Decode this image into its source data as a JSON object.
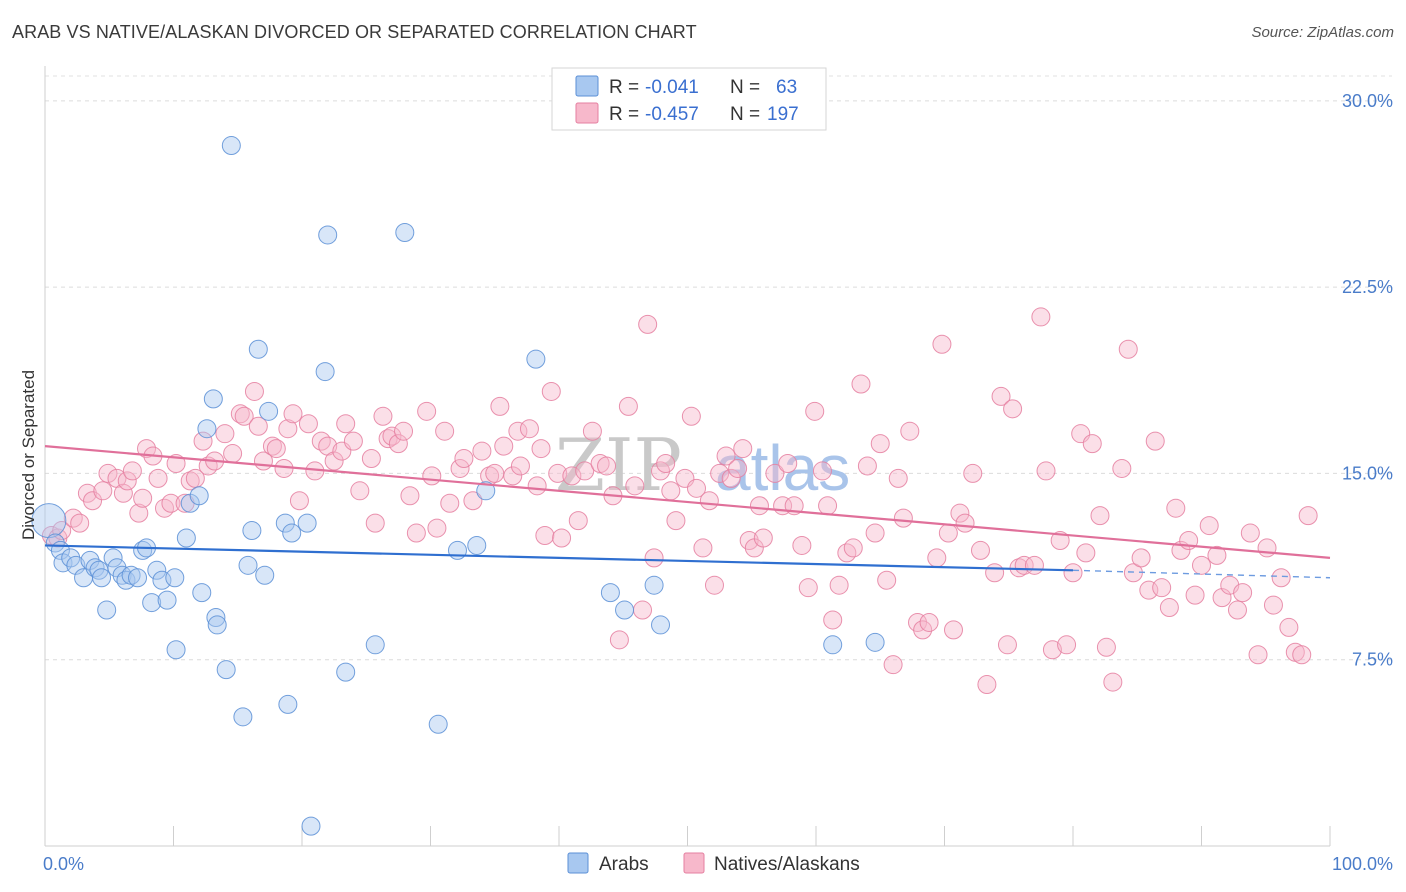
{
  "title": "ARAB VS NATIVE/ALASKAN DIVORCED OR SEPARATED CORRELATION CHART",
  "source": "Source: ZipAtlas.com",
  "watermark": {
    "part1": "ZIP",
    "part2": "atlas"
  },
  "legend": {
    "rows": [
      {
        "r_label": "R =",
        "r_value": "-0.041",
        "n_label": "N =",
        "n_value": "63",
        "color": "#a8c8f0",
        "stroke": "#5b8fd6"
      },
      {
        "r_label": "R =",
        "r_value": "-0.457",
        "n_label": "N =",
        "n_value": "197",
        "color": "#f7b8cb",
        "stroke": "#e57fa0"
      }
    ]
  },
  "bottom_legend": [
    {
      "label": "Arabs",
      "color": "#a8c8f0",
      "stroke": "#5b8fd6"
    },
    {
      "label": "Natives/Alaskans",
      "color": "#f7b8cb",
      "stroke": "#e57fa0"
    }
  ],
  "chart_data": {
    "type": "scatter",
    "title": "ARAB VS NATIVE/ALASKAN DIVORCED OR SEPARATED CORRELATION CHART",
    "xlabel": "",
    "ylabel": "Divorced or Separated",
    "xlim": [
      0,
      100
    ],
    "ylim": [
      0,
      31
    ],
    "x_tick_labels": [
      "0.0%",
      "100.0%"
    ],
    "y_ticks": [
      {
        "value": 7.5,
        "label": "7.5%"
      },
      {
        "value": 15.0,
        "label": "15.0%"
      },
      {
        "value": 22.5,
        "label": "22.5%"
      },
      {
        "value": 30.0,
        "label": "30.0%"
      }
    ],
    "grid": true,
    "legend_position": "top-center",
    "series": [
      {
        "name": "Arabs",
        "color": "#5b8fd6",
        "fill": "#a8c8f0",
        "trend": {
          "x": [
            0,
            80
          ],
          "y": [
            12.1,
            11.1
          ],
          "dashed_to": [
            100,
            10.8
          ]
        },
        "points": [
          [
            0.3,
            13.1
          ],
          [
            0.8,
            12.2
          ],
          [
            1.2,
            11.9
          ],
          [
            1.4,
            11.4
          ],
          [
            2,
            11.6
          ],
          [
            2.4,
            11.3
          ],
          [
            3,
            10.8
          ],
          [
            3.5,
            11.5
          ],
          [
            3.9,
            11.2
          ],
          [
            4.2,
            11.1
          ],
          [
            4.4,
            10.8
          ],
          [
            4.8,
            9.5
          ],
          [
            5.3,
            11.6
          ],
          [
            5.6,
            11.2
          ],
          [
            6,
            10.9
          ],
          [
            6.3,
            10.7
          ],
          [
            6.7,
            10.9
          ],
          [
            7.2,
            10.8
          ],
          [
            7.6,
            11.9
          ],
          [
            7.9,
            12.0
          ],
          [
            8.3,
            9.8
          ],
          [
            8.7,
            11.1
          ],
          [
            9.1,
            10.7
          ],
          [
            9.5,
            9.9
          ],
          [
            10.1,
            10.8
          ],
          [
            10.2,
            7.9
          ],
          [
            11.0,
            12.4
          ],
          [
            11.3,
            13.8
          ],
          [
            12.0,
            14.1
          ],
          [
            12.2,
            10.2
          ],
          [
            12.6,
            16.8
          ],
          [
            13.1,
            18.0
          ],
          [
            13.3,
            9.2
          ],
          [
            13.4,
            8.9
          ],
          [
            14.1,
            7.1
          ],
          [
            14.5,
            28.2
          ],
          [
            15.4,
            5.2
          ],
          [
            15.8,
            11.3
          ],
          [
            16.1,
            12.7
          ],
          [
            16.6,
            20.0
          ],
          [
            17.1,
            10.9
          ],
          [
            17.4,
            17.5
          ],
          [
            18.7,
            13.0
          ],
          [
            18.9,
            5.7
          ],
          [
            19.2,
            12.6
          ],
          [
            20.4,
            13.0
          ],
          [
            20.7,
            0.8
          ],
          [
            21.8,
            19.1
          ],
          [
            22.0,
            24.6
          ],
          [
            23.4,
            7.0
          ],
          [
            25.7,
            8.1
          ],
          [
            28.0,
            24.7
          ],
          [
            30.6,
            4.9
          ],
          [
            32.1,
            11.9
          ],
          [
            33.6,
            12.1
          ],
          [
            34.3,
            14.3
          ],
          [
            38.2,
            19.6
          ],
          [
            44.0,
            10.2
          ],
          [
            45.1,
            9.5
          ],
          [
            47.4,
            10.5
          ],
          [
            47.9,
            8.9
          ],
          [
            61.3,
            8.1
          ],
          [
            64.6,
            8.2
          ]
        ]
      },
      {
        "name": "Natives/Alaskans",
        "color": "#e57fa0",
        "fill": "#f7b8cb",
        "trend": {
          "x": [
            0,
            100
          ],
          "y": [
            16.1,
            11.6
          ]
        },
        "points": [
          [
            0.5,
            12.5
          ],
          [
            1.0,
            12.4
          ],
          [
            1.3,
            12.7
          ],
          [
            2.2,
            13.2
          ],
          [
            2.7,
            13.0
          ],
          [
            3.3,
            14.2
          ],
          [
            3.7,
            13.9
          ],
          [
            4.5,
            14.3
          ],
          [
            4.9,
            15.0
          ],
          [
            5.6,
            14.8
          ],
          [
            6.1,
            14.2
          ],
          [
            6.4,
            14.7
          ],
          [
            6.8,
            15.1
          ],
          [
            7.3,
            13.4
          ],
          [
            7.6,
            14.0
          ],
          [
            7.9,
            16.0
          ],
          [
            8.4,
            15.7
          ],
          [
            8.8,
            14.8
          ],
          [
            9.3,
            13.6
          ],
          [
            9.8,
            13.8
          ],
          [
            10.2,
            15.4
          ],
          [
            10.9,
            13.8
          ],
          [
            11.3,
            14.7
          ],
          [
            11.7,
            14.8
          ],
          [
            12.3,
            16.3
          ],
          [
            12.7,
            15.3
          ],
          [
            13.2,
            15.5
          ],
          [
            14.0,
            16.6
          ],
          [
            14.6,
            15.8
          ],
          [
            15.2,
            17.4
          ],
          [
            15.5,
            17.3
          ],
          [
            16.3,
            18.3
          ],
          [
            16.6,
            16.9
          ],
          [
            17.0,
            15.5
          ],
          [
            17.7,
            16.1
          ],
          [
            18.0,
            16.0
          ],
          [
            18.6,
            15.2
          ],
          [
            18.9,
            16.8
          ],
          [
            19.3,
            17.4
          ],
          [
            19.8,
            13.9
          ],
          [
            20.5,
            17.0
          ],
          [
            21.0,
            15.1
          ],
          [
            21.5,
            16.3
          ],
          [
            22.0,
            16.1
          ],
          [
            22.5,
            15.5
          ],
          [
            23.1,
            15.9
          ],
          [
            23.4,
            17.0
          ],
          [
            24.0,
            16.3
          ],
          [
            24.5,
            14.3
          ],
          [
            25.4,
            15.6
          ],
          [
            25.7,
            13.0
          ],
          [
            26.3,
            17.3
          ],
          [
            26.7,
            16.4
          ],
          [
            27.0,
            16.5
          ],
          [
            27.5,
            16.2
          ],
          [
            27.9,
            16.7
          ],
          [
            28.4,
            14.1
          ],
          [
            28.9,
            12.6
          ],
          [
            29.7,
            17.5
          ],
          [
            30.1,
            14.9
          ],
          [
            30.5,
            12.8
          ],
          [
            31.1,
            16.7
          ],
          [
            31.5,
            13.8
          ],
          [
            32.3,
            15.2
          ],
          [
            32.6,
            15.6
          ],
          [
            33.3,
            13.9
          ],
          [
            34.0,
            15.9
          ],
          [
            34.6,
            14.9
          ],
          [
            35.0,
            15.0
          ],
          [
            35.4,
            17.7
          ],
          [
            35.7,
            16.1
          ],
          [
            36.4,
            14.9
          ],
          [
            36.8,
            16.7
          ],
          [
            37.0,
            15.3
          ],
          [
            37.7,
            16.8
          ],
          [
            38.3,
            14.5
          ],
          [
            38.6,
            16.0
          ],
          [
            38.9,
            12.5
          ],
          [
            39.4,
            18.3
          ],
          [
            39.9,
            15.0
          ],
          [
            40.2,
            12.4
          ],
          [
            41.0,
            14.9
          ],
          [
            41.5,
            13.1
          ],
          [
            42.0,
            15.1
          ],
          [
            42.6,
            16.7
          ],
          [
            43.2,
            15.4
          ],
          [
            43.7,
            15.3
          ],
          [
            44.2,
            14.1
          ],
          [
            44.7,
            8.3
          ],
          [
            45.4,
            17.7
          ],
          [
            45.9,
            14.5
          ],
          [
            46.5,
            9.5
          ],
          [
            46.9,
            21.0
          ],
          [
            47.4,
            11.6
          ],
          [
            47.9,
            15.1
          ],
          [
            48.3,
            15.4
          ],
          [
            48.7,
            14.3
          ],
          [
            49.1,
            13.1
          ],
          [
            49.8,
            14.8
          ],
          [
            50.3,
            17.3
          ],
          [
            50.7,
            14.4
          ],
          [
            51.2,
            12.0
          ],
          [
            51.7,
            13.9
          ],
          [
            52.1,
            10.5
          ],
          [
            52.5,
            15.0
          ],
          [
            53.0,
            15.7
          ],
          [
            53.4,
            14.8
          ],
          [
            53.9,
            15.2
          ],
          [
            54.3,
            16.0
          ],
          [
            54.8,
            12.3
          ],
          [
            55.2,
            12.0
          ],
          [
            55.6,
            13.7
          ],
          [
            55.9,
            12.4
          ],
          [
            56.8,
            15.0
          ],
          [
            57.4,
            13.7
          ],
          [
            57.8,
            15.4
          ],
          [
            58.3,
            13.7
          ],
          [
            58.9,
            12.1
          ],
          [
            59.4,
            10.4
          ],
          [
            59.9,
            17.5
          ],
          [
            60.5,
            15.1
          ],
          [
            60.9,
            13.7
          ],
          [
            61.3,
            9.1
          ],
          [
            61.8,
            10.5
          ],
          [
            62.4,
            11.8
          ],
          [
            62.9,
            12.0
          ],
          [
            63.5,
            18.6
          ],
          [
            64.0,
            15.3
          ],
          [
            64.6,
            12.6
          ],
          [
            65.0,
            16.2
          ],
          [
            65.5,
            10.7
          ],
          [
            66.0,
            7.3
          ],
          [
            66.4,
            14.8
          ],
          [
            66.8,
            13.2
          ],
          [
            67.3,
            16.7
          ],
          [
            67.9,
            9.0
          ],
          [
            68.3,
            8.7
          ],
          [
            68.8,
            9.0
          ],
          [
            69.4,
            11.6
          ],
          [
            69.8,
            20.2
          ],
          [
            70.3,
            12.6
          ],
          [
            70.7,
            8.7
          ],
          [
            71.2,
            13.4
          ],
          [
            71.6,
            13.0
          ],
          [
            72.2,
            15.0
          ],
          [
            72.8,
            11.9
          ],
          [
            73.3,
            6.5
          ],
          [
            73.9,
            11.0
          ],
          [
            74.4,
            18.1
          ],
          [
            74.9,
            8.1
          ],
          [
            75.3,
            17.6
          ],
          [
            75.8,
            11.2
          ],
          [
            76.2,
            11.3
          ],
          [
            77.0,
            11.3
          ],
          [
            77.5,
            21.3
          ],
          [
            77.9,
            15.1
          ],
          [
            78.4,
            7.9
          ],
          [
            79.0,
            12.3
          ],
          [
            79.5,
            8.1
          ],
          [
            80.0,
            11.0
          ],
          [
            80.6,
            16.6
          ],
          [
            81.0,
            11.8
          ],
          [
            81.5,
            16.2
          ],
          [
            82.1,
            13.3
          ],
          [
            82.6,
            8.0
          ],
          [
            83.1,
            6.6
          ],
          [
            83.8,
            15.2
          ],
          [
            84.3,
            20.0
          ],
          [
            84.7,
            11.0
          ],
          [
            85.3,
            11.6
          ],
          [
            85.9,
            10.3
          ],
          [
            86.4,
            16.3
          ],
          [
            86.9,
            10.4
          ],
          [
            87.5,
            9.6
          ],
          [
            88.0,
            13.6
          ],
          [
            88.4,
            11.9
          ],
          [
            89.0,
            12.3
          ],
          [
            89.5,
            10.1
          ],
          [
            90.0,
            11.3
          ],
          [
            90.6,
            12.9
          ],
          [
            91.2,
            11.7
          ],
          [
            91.6,
            10.0
          ],
          [
            92.2,
            10.5
          ],
          [
            92.8,
            9.5
          ],
          [
            93.2,
            10.2
          ],
          [
            93.8,
            12.6
          ],
          [
            94.4,
            7.7
          ],
          [
            95.1,
            12.0
          ],
          [
            95.6,
            9.7
          ],
          [
            96.2,
            10.8
          ],
          [
            96.8,
            8.8
          ],
          [
            97.3,
            7.8
          ],
          [
            97.8,
            7.7
          ],
          [
            98.3,
            13.3
          ]
        ]
      }
    ]
  }
}
